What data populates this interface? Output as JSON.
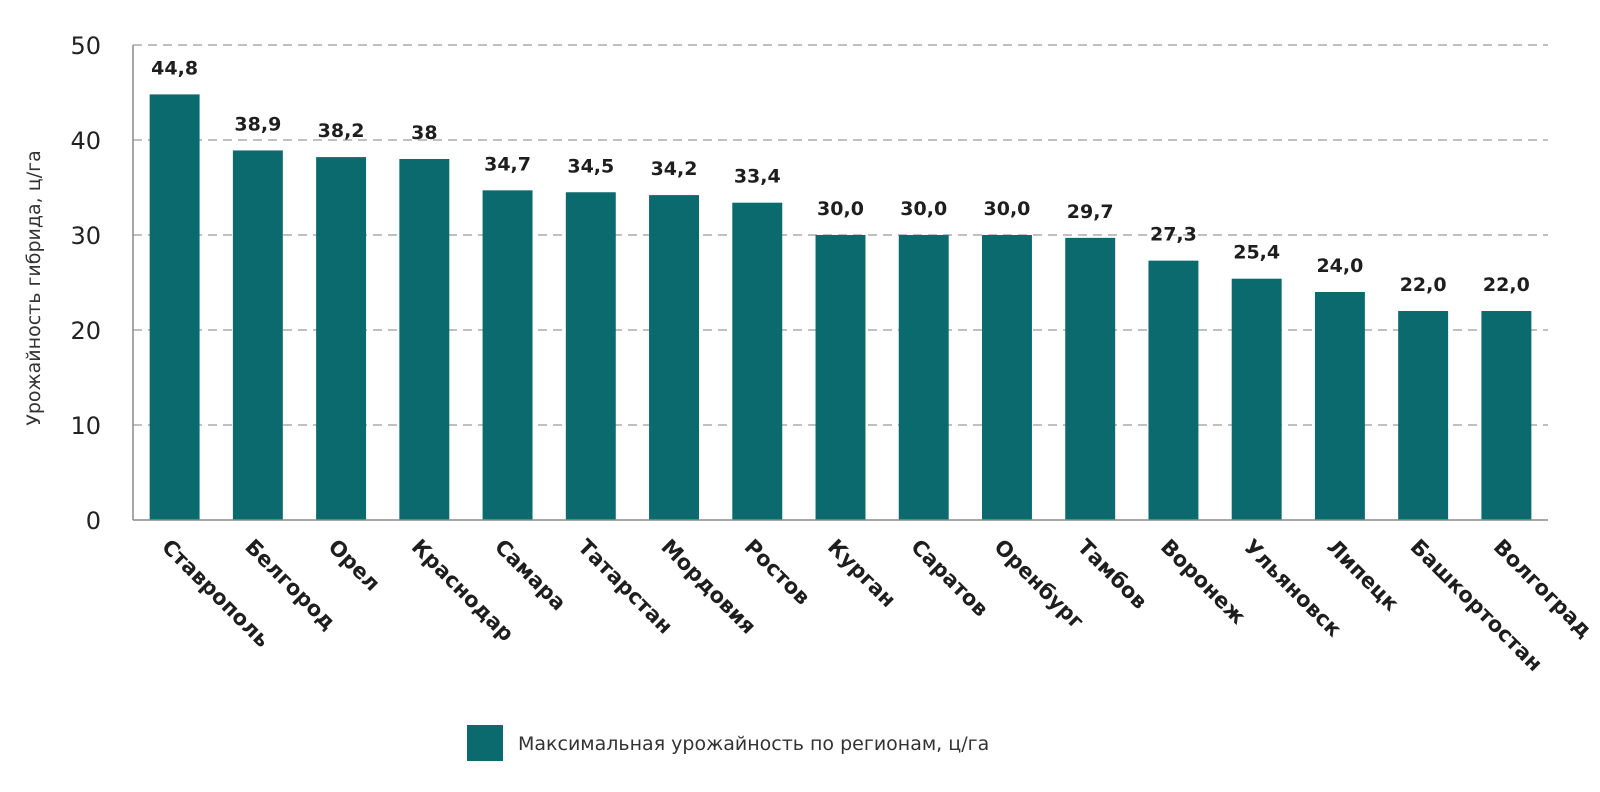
{
  "chart_data": {
    "type": "bar",
    "categories": [
      "Ставрополь",
      "Белгород",
      "Орел",
      "Краснодар",
      "Самара",
      "Татарстан",
      "Мордовия",
      "Ростов",
      "Курган",
      "Саратов",
      "Оренбург",
      "Тамбов",
      "Воронеж",
      "Ульяновск",
      "Липецк",
      "Башкортостан",
      "Волгоград"
    ],
    "series": [
      {
        "name": "Максимальная урожайность по регионам, ц/га",
        "values": [
          44.8,
          38.9,
          38.2,
          38,
          34.7,
          34.5,
          34.2,
          33.4,
          30.0,
          30.0,
          30.0,
          29.7,
          27.3,
          25.4,
          24.0,
          22.0,
          22.0
        ],
        "labels": [
          "44,8",
          "38,9",
          "38,2",
          "38",
          "34,7",
          "34,5",
          "34,2",
          "33,4",
          "30,0",
          "30,0",
          "30,0",
          "29,7",
          "27,3",
          "25,4",
          "24,0",
          "22,0",
          "22,0"
        ],
        "color": "#0b6a6e"
      }
    ],
    "title": "",
    "xlabel": "",
    "ylabel": "Урожайность гибрида, ц/га",
    "ylim": [
      0,
      50
    ],
    "yticks": [
      0,
      10,
      20,
      30,
      40,
      50
    ],
    "grid": true,
    "legend": "bottom-center"
  }
}
